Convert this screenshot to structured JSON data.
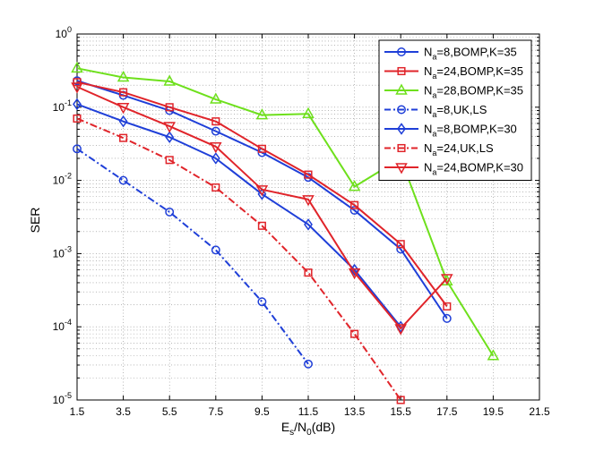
{
  "chart_data": {
    "type": "line",
    "title": "",
    "xlabel": "Es/N0(dB)",
    "xlabel_parts": {
      "main": "E",
      "sub1": "s",
      "mid": "/N",
      "sub2": "0",
      "tail": "(dB)"
    },
    "ylabel": "SER",
    "xscale": "linear",
    "yscale": "log",
    "xlim": [
      1.5,
      21.5
    ],
    "ylim": [
      1e-05,
      1
    ],
    "grid": true,
    "legend_position": "top-right",
    "xticks": [
      1.5,
      3.5,
      5.5,
      7.5,
      9.5,
      11.5,
      13.5,
      15.5,
      17.5,
      19.5,
      21.5
    ],
    "xtick_labels": [
      "1.5",
      "3.5",
      "5.5",
      "7.5",
      "9.5",
      "11.5",
      "13.5",
      "15.5",
      "17.5",
      "19.5",
      "21.5"
    ],
    "yticks": [
      {
        "value": 1,
        "base": "10",
        "exp": "0"
      },
      {
        "value": 0.1,
        "base": "10",
        "exp": "-1"
      },
      {
        "value": 0.01,
        "base": "10",
        "exp": "-2"
      },
      {
        "value": 0.001,
        "base": "10",
        "exp": "-3"
      },
      {
        "value": 0.0001,
        "base": "10",
        "exp": "-4"
      },
      {
        "value": 1e-05,
        "base": "10",
        "exp": "-5"
      }
    ],
    "series": [
      {
        "name": "Na=8,BOMP,K=35",
        "legend": {
          "pre": "N",
          "sub": "a",
          "post": "=8,BOMP,K=35"
        },
        "color": "#1f3fd8",
        "marker": "circle",
        "dash": "solid",
        "x": [
          1.5,
          3.5,
          5.5,
          7.5,
          9.5,
          11.5,
          13.5,
          15.5,
          17.5
        ],
        "y": [
          0.23,
          0.145,
          0.09,
          0.047,
          0.024,
          0.011,
          0.0039,
          0.00115,
          0.00013
        ]
      },
      {
        "name": "Na=24,BOMP,K=35",
        "legend": {
          "pre": "N",
          "sub": "a",
          "post": "=24,BOMP,K=35"
        },
        "color": "#e0242a",
        "marker": "square",
        "dash": "solid",
        "x": [
          1.5,
          3.5,
          5.5,
          7.5,
          9.5,
          11.5,
          13.5,
          15.5,
          17.5
        ],
        "y": [
          0.22,
          0.16,
          0.1,
          0.064,
          0.027,
          0.012,
          0.0046,
          0.00135,
          0.00019
        ]
      },
      {
        "name": "Na=28,BOMP,K=35",
        "legend": {
          "pre": "N",
          "sub": "a",
          "post": "=28,BOMP,K=35"
        },
        "color": "#6ee01c",
        "marker": "triangle",
        "dash": "solid",
        "x": [
          1.5,
          3.5,
          5.5,
          7.5,
          9.5,
          11.5,
          13.5,
          15.5,
          17.5,
          19.5
        ],
        "y": [
          0.34,
          0.255,
          0.225,
          0.128,
          0.078,
          0.081,
          0.0082,
          0.02,
          0.00042,
          4e-05
        ]
      },
      {
        "name": "Na=8,UK,LS",
        "legend": {
          "pre": "N",
          "sub": "a",
          "post": "=8,UK,LS"
        },
        "color": "#1f3fd8",
        "marker": "circle",
        "dash": "dashdot",
        "x": [
          1.5,
          3.5,
          5.5,
          7.5,
          9.5,
          11.5
        ],
        "y": [
          0.027,
          0.01,
          0.0037,
          0.00112,
          0.00022,
          3.1e-05
        ]
      },
      {
        "name": "Na=8,BOMP,K=30",
        "legend": {
          "pre": "N",
          "sub": "a",
          "post": "=8,BOMP,K=30"
        },
        "color": "#1f3fd8",
        "marker": "diamond",
        "dash": "solid",
        "x": [
          1.5,
          3.5,
          5.5,
          7.5,
          9.5,
          11.5,
          13.5,
          15.5
        ],
        "y": [
          0.11,
          0.064,
          0.039,
          0.02,
          0.0065,
          0.0025,
          0.0006,
          0.0001
        ]
      },
      {
        "name": "Na=24,UK,LS",
        "legend": {
          "pre": "N",
          "sub": "a",
          "post": "=24,UK,LS"
        },
        "color": "#e0242a",
        "marker": "square",
        "dash": "dashdot",
        "x": [
          1.5,
          3.5,
          5.5,
          7.5,
          9.5,
          11.5,
          13.5,
          15.5
        ],
        "y": [
          0.07,
          0.038,
          0.019,
          0.008,
          0.0024,
          0.00055,
          8e-05,
          1e-05
        ]
      },
      {
        "name": "Na=24,BOMP,K=30",
        "legend": {
          "pre": "N",
          "sub": "a",
          "post": "=24,BOMP,K=30"
        },
        "color": "#e0242a",
        "marker": "triangle-down",
        "dash": "solid",
        "x": [
          1.5,
          3.5,
          5.5,
          7.5,
          9.5,
          11.5,
          13.5,
          15.5,
          17.5
        ],
        "y": [
          0.19,
          0.1,
          0.055,
          0.029,
          0.0075,
          0.0055,
          0.00055,
          9.5e-05,
          0.00046
        ]
      }
    ]
  }
}
